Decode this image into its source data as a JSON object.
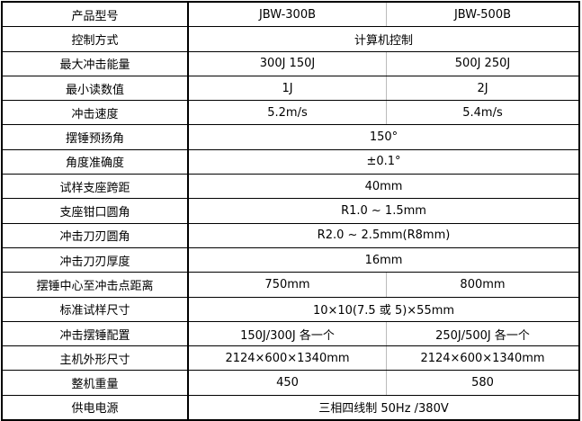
{
  "rows": [
    {
      "label": "产品型号",
      "values": [
        "JBW-300B",
        "JBW-500B"
      ]
    },
    {
      "label": "控制方式",
      "values": [
        "计算机控制"
      ]
    },
    {
      "label": "最大冲击能量",
      "values": [
        "300J 150J",
        "500J 250J"
      ]
    },
    {
      "label": "最小读数值",
      "values": [
        "1J",
        "2J"
      ]
    },
    {
      "label": "冲击速度",
      "values": [
        "5.2m/s",
        "5.4m/s"
      ]
    },
    {
      "label": "摆锤预扬角",
      "values": [
        "150°"
      ]
    },
    {
      "label": "角度准确度",
      "values": [
        "±0.1°"
      ]
    },
    {
      "label": "试样支座跨距",
      "values": [
        "40mm"
      ]
    },
    {
      "label": "支座钳口圆角",
      "values": [
        "R1.0 ~ 1.5mm"
      ]
    },
    {
      "label": "冲击刀刃圆角",
      "values": [
        "R2.0 ~ 2.5mm(R8mm)"
      ]
    },
    {
      "label": "冲击刀刃厚度",
      "values": [
        "16mm"
      ]
    },
    {
      "label": "摆锤中心至冲击点距离",
      "values": [
        "750mm",
        "800mm"
      ]
    },
    {
      "label": "标准试样尺寸",
      "values": [
        "10×10(7.5 或 5)×55mm"
      ]
    },
    {
      "label": "冲击摆锤配置",
      "values": [
        "150J/300J 各一个",
        "250J/500J 各一个"
      ]
    },
    {
      "label": "主机外形尺寸",
      "values": [
        "2124×600×1340mm",
        "2124×600×1340mm"
      ]
    },
    {
      "label": "整机重量",
      "values": [
        "450",
        "580"
      ]
    },
    {
      "label": "供电电源",
      "values": [
        "三相四线制 50Hz /380V"
      ]
    }
  ]
}
